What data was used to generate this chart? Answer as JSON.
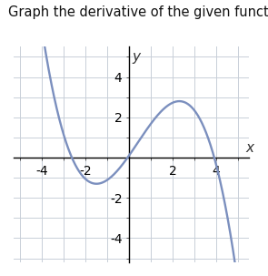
{
  "title": "Graph the derivative of the given function.",
  "title_fontsize": 10.5,
  "xlabel": "x",
  "ylabel": "y",
  "xlim": [
    -5.3,
    5.5
  ],
  "ylim": [
    -5.2,
    5.5
  ],
  "grid_color": "#c8cfd8",
  "curve_color": "#7b8fbe",
  "curve_linewidth": 1.7,
  "background_color": "#ffffff",
  "axis_color": "#000000",
  "tick_fontsize": 9,
  "label_fontsize": 11,
  "cubic_a": -0.1866,
  "cubic_b": 0.4199,
  "cubic_c": 1.3995,
  "cubic_d": 1.993,
  "x_start": -5.3,
  "x_end": 5.3
}
